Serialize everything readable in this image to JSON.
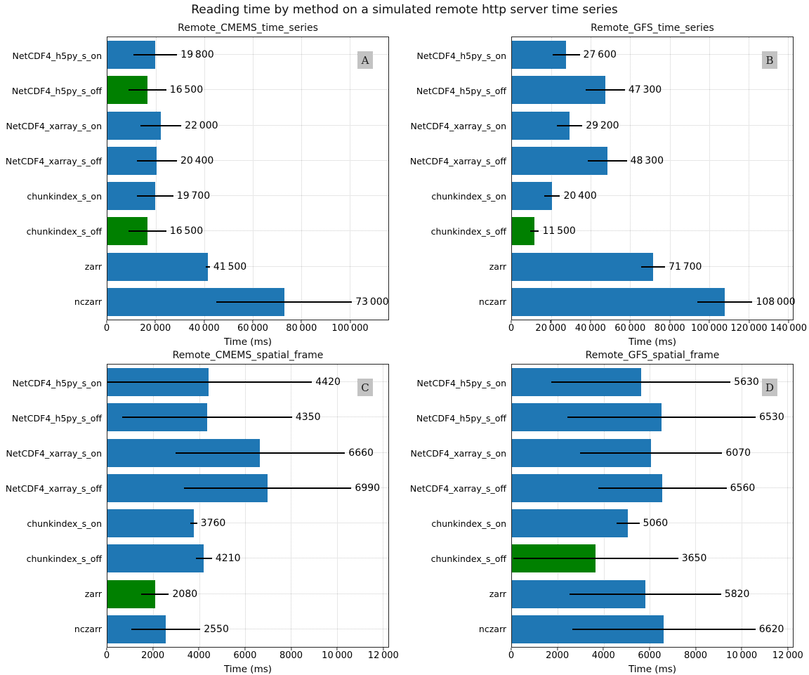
{
  "chart_data": {
    "type": "bar",
    "orientation": "horizontal",
    "suptitle": "Reading time by method on a simulated remote http server time series",
    "xlabel": "Time (ms)",
    "grid": "dotted, both axes",
    "legend": "none",
    "categories": [
      "NetCDF4_h5py_s_on",
      "NetCDF4_h5py_s_off",
      "NetCDF4_xarray_s_on",
      "NetCDF4_xarray_s_off",
      "chunkindex_s_on",
      "chunkindex_s_off",
      "zarr",
      "nczarr"
    ],
    "colors": {
      "default_bar": "#1f77b4",
      "highlight_bar": "#008000",
      "error_line": "#000000",
      "letter_box_bg": "#c3c3c3",
      "frame": "#262626"
    },
    "panels": [
      {
        "letter": "A",
        "title": "Remote_CMEMS_time_series",
        "xlim": [
          0,
          116000
        ],
        "ticks": [
          0,
          20000,
          40000,
          60000,
          80000,
          100000
        ],
        "tick_labels": [
          "0",
          "20 000",
          "40 000",
          "60 000",
          "80 000",
          "100 000"
        ],
        "values": [
          19800,
          16500,
          22000,
          20400,
          19700,
          16500,
          41500,
          73000
        ],
        "value_labels": [
          "19 800",
          "16 500",
          "22 000",
          "20 400",
          "19 700",
          "16 500",
          "41 500",
          "73 000"
        ],
        "errors": [
          9000,
          7800,
          8500,
          8300,
          7500,
          7800,
          800,
          28000
        ],
        "bar_colors": [
          "blue",
          "green",
          "blue",
          "blue",
          "blue",
          "green",
          "blue",
          "blue"
        ]
      },
      {
        "letter": "B",
        "title": "Remote_GFS_time_series",
        "xlim": [
          0,
          142500
        ],
        "ticks": [
          0,
          20000,
          40000,
          60000,
          80000,
          100000,
          120000,
          140000
        ],
        "tick_labels": [
          "0",
          "20 000",
          "40 000",
          "60 000",
          "80 000",
          "100 000",
          "120 000",
          "140 000"
        ],
        "values": [
          27600,
          47300,
          29200,
          48300,
          20400,
          11500,
          71700,
          108000
        ],
        "value_labels": [
          "27 600",
          "47 300",
          "29 200",
          "48 300",
          "20 400",
          "11 500",
          "71 700",
          "108 000"
        ],
        "errors": [
          6800,
          10000,
          6500,
          10000,
          4000,
          2200,
          6000,
          14000
        ],
        "bar_colors": [
          "blue",
          "blue",
          "blue",
          "blue",
          "blue",
          "green",
          "blue",
          "blue"
        ]
      },
      {
        "letter": "C",
        "title": "Remote_CMEMS_spatial_frame",
        "xlim": [
          0,
          12250
        ],
        "ticks": [
          0,
          2000,
          4000,
          6000,
          8000,
          10000,
          12000
        ],
        "tick_labels": [
          "0",
          "2000",
          "4000",
          "6000",
          "8000",
          "10 000",
          "12 000"
        ],
        "values": [
          4420,
          4350,
          6660,
          6990,
          3760,
          4210,
          2080,
          2550
        ],
        "value_labels": [
          "4420",
          "4350",
          "6660",
          "6990",
          "3760",
          "4210",
          "2080",
          "2550"
        ],
        "errors": [
          4500,
          3700,
          3700,
          3650,
          150,
          350,
          600,
          1500
        ],
        "bar_colors": [
          "blue",
          "blue",
          "blue",
          "blue",
          "blue",
          "blue",
          "green",
          "blue"
        ]
      },
      {
        "letter": "D",
        "title": "Remote_GFS_spatial_frame",
        "xlim": [
          0,
          12250
        ],
        "ticks": [
          0,
          2000,
          4000,
          6000,
          8000,
          10000,
          12000
        ],
        "tick_labels": [
          "0",
          "2000",
          "4000",
          "6000",
          "8000",
          "10 000",
          "12 000"
        ],
        "values": [
          5630,
          6530,
          6070,
          6560,
          5060,
          3650,
          5820,
          6620
        ],
        "value_labels": [
          "5630",
          "6530",
          "6070",
          "6560",
          "5060",
          "3650",
          "5820",
          "6620"
        ],
        "errors": [
          3900,
          4100,
          3100,
          2800,
          500,
          3600,
          3300,
          4000
        ],
        "bar_colors": [
          "blue",
          "blue",
          "blue",
          "blue",
          "blue",
          "green",
          "blue",
          "blue"
        ]
      }
    ]
  }
}
